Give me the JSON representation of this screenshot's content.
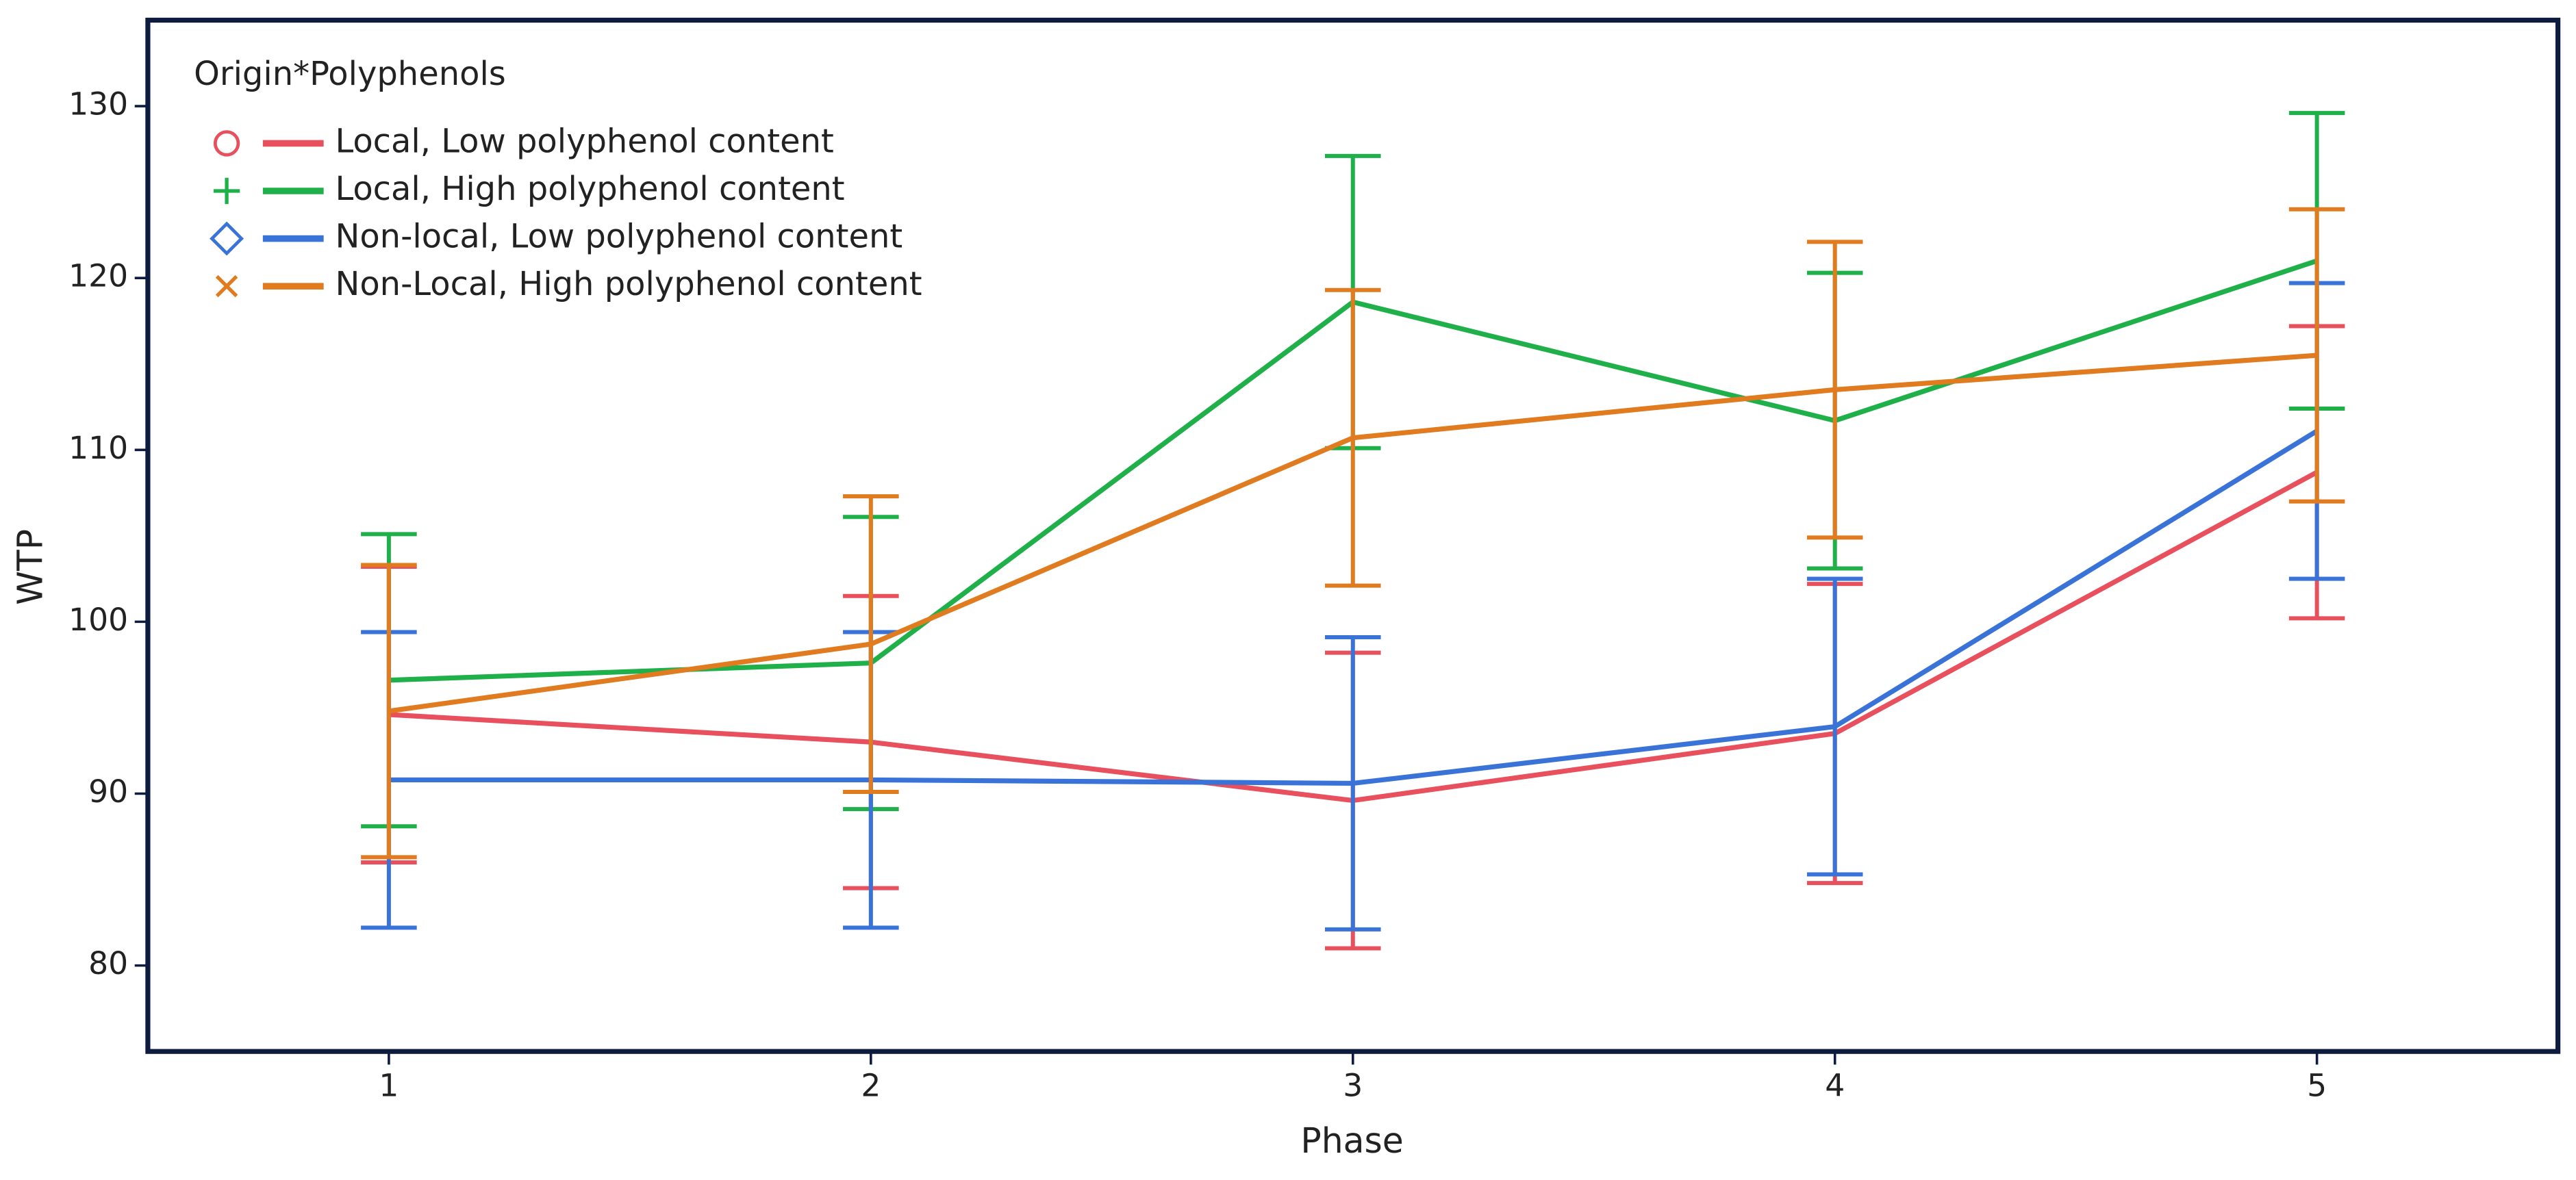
{
  "chart_data": {
    "type": "line",
    "legend_title": "Origin*Polyphenols",
    "x_label": "Phase",
    "y_label": "WTP",
    "x": [
      1,
      2,
      3,
      4,
      5
    ],
    "xlim": [
      0.5,
      5.5
    ],
    "xticks": [
      1,
      2,
      3,
      4,
      5
    ],
    "ylim": [
      75,
      135
    ],
    "yticks": [
      80,
      90,
      100,
      110,
      120,
      130
    ],
    "legend": "upper left",
    "series": [
      {
        "name": "Local, Low polyphenol content",
        "color": "#e8505e",
        "marker": "circle",
        "values": [
          94.6,
          93.0,
          89.6,
          93.5,
          108.7
        ],
        "error": [
          8.6,
          8.5,
          8.6,
          8.7,
          8.5
        ]
      },
      {
        "name": "Local, High polyphenol content",
        "color": "#1fb04a",
        "marker": "plus",
        "values": [
          96.6,
          97.6,
          118.6,
          111.7,
          121.0
        ],
        "error": [
          8.5,
          8.5,
          8.5,
          8.6,
          8.6
        ]
      },
      {
        "name": "Non-local, Low polyphenol content",
        "color": "#3a73d8",
        "marker": "diamond",
        "values": [
          90.8,
          90.8,
          90.6,
          93.9,
          111.1
        ],
        "error": [
          8.6,
          8.6,
          8.5,
          8.6,
          8.6
        ]
      },
      {
        "name": "Non-Local, High polyphenol content",
        "color": "#e07b1f",
        "marker": "x",
        "values": [
          94.8,
          98.7,
          110.7,
          113.5,
          115.5
        ],
        "error": [
          8.5,
          8.6,
          8.6,
          8.6,
          8.5
        ]
      }
    ]
  }
}
